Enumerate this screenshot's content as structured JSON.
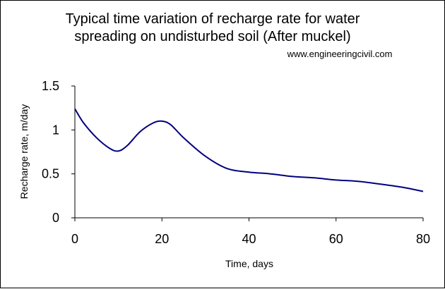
{
  "chart_data": {
    "type": "line",
    "title": "Typical time variation of recharge rate for water spreading on undisturbed soil (After muckel)",
    "title_lines": [
      "Typical time variation of recharge rate for water",
      "spreading on undisturbed soil (After muckel)"
    ],
    "source_note": "www.engineeringcivil.com",
    "xlabel": "Time, days",
    "ylabel": "Recharge rate, m/day",
    "xlim": [
      0,
      80
    ],
    "ylim": [
      0,
      1.5
    ],
    "x_ticks": [
      "0",
      "20",
      "40",
      "60",
      "80"
    ],
    "y_ticks": [
      "0",
      "0.5",
      "1",
      "1.5"
    ],
    "x_tick_values": [
      0,
      20,
      40,
      60,
      80
    ],
    "y_tick_values": [
      0,
      0.5,
      1,
      1.5
    ],
    "grid": false,
    "legend": "none",
    "series": [
      {
        "color": "#000080",
        "x": [
          0,
          2,
          5,
          8,
          10,
          12,
          15,
          18,
          20,
          22,
          25,
          30,
          35,
          40,
          45,
          50,
          55,
          60,
          65,
          70,
          75,
          80
        ],
        "y": [
          1.24,
          1.08,
          0.91,
          0.79,
          0.76,
          0.82,
          0.98,
          1.08,
          1.1,
          1.06,
          0.91,
          0.7,
          0.56,
          0.52,
          0.5,
          0.47,
          0.455,
          0.43,
          0.415,
          0.385,
          0.35,
          0.3
        ]
      }
    ]
  }
}
